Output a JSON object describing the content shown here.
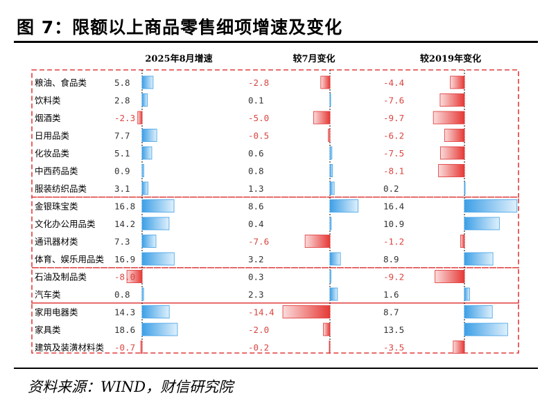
{
  "title": "图 7：限额以上商品零售细项增速及变化",
  "source": "资料来源：WIND，财信研究院",
  "colors": {
    "positive": "#3d9fe6",
    "negative": "#e53935",
    "negative_text": "#d9443f",
    "group_box": "#e03b3b"
  },
  "chart_data": {
    "type": "bar",
    "orientation": "horizontal",
    "categories": [
      "粮油、食品类",
      "饮料类",
      "烟酒类",
      "日用品类",
      "化妆品类",
      "中西药品类",
      "服装纺织品类",
      "金银珠宝类",
      "文化办公用品类",
      "通讯器材类",
      "体育、娱乐用品类",
      "石油及制品类",
      "汽车类",
      "家用电器类",
      "家具类",
      "建筑及装潢材料类"
    ],
    "groups": [
      7,
      4,
      2,
      3
    ],
    "series": [
      {
        "name": "2025年8月增速",
        "values": [
          5.8,
          2.8,
          -2.3,
          7.7,
          5.1,
          0.9,
          3.1,
          16.8,
          14.2,
          7.3,
          16.9,
          -8.0,
          0.8,
          14.3,
          18.6,
          -0.7
        ]
      },
      {
        "name": "较7月变化",
        "values": [
          -2.8,
          0.1,
          -5.0,
          -0.5,
          0.6,
          0.8,
          1.3,
          8.6,
          0.4,
          -7.6,
          3.2,
          0.3,
          2.3,
          -14.4,
          -2.0,
          -0.2
        ]
      },
      {
        "name": "较2019年变化",
        "values": [
          -4.4,
          -7.6,
          -9.7,
          -6.2,
          -7.5,
          -8.1,
          0.2,
          16.4,
          10.9,
          -1.2,
          8.9,
          -9.2,
          1.6,
          8.7,
          13.5,
          -3.5
        ]
      }
    ],
    "grid": false
  }
}
